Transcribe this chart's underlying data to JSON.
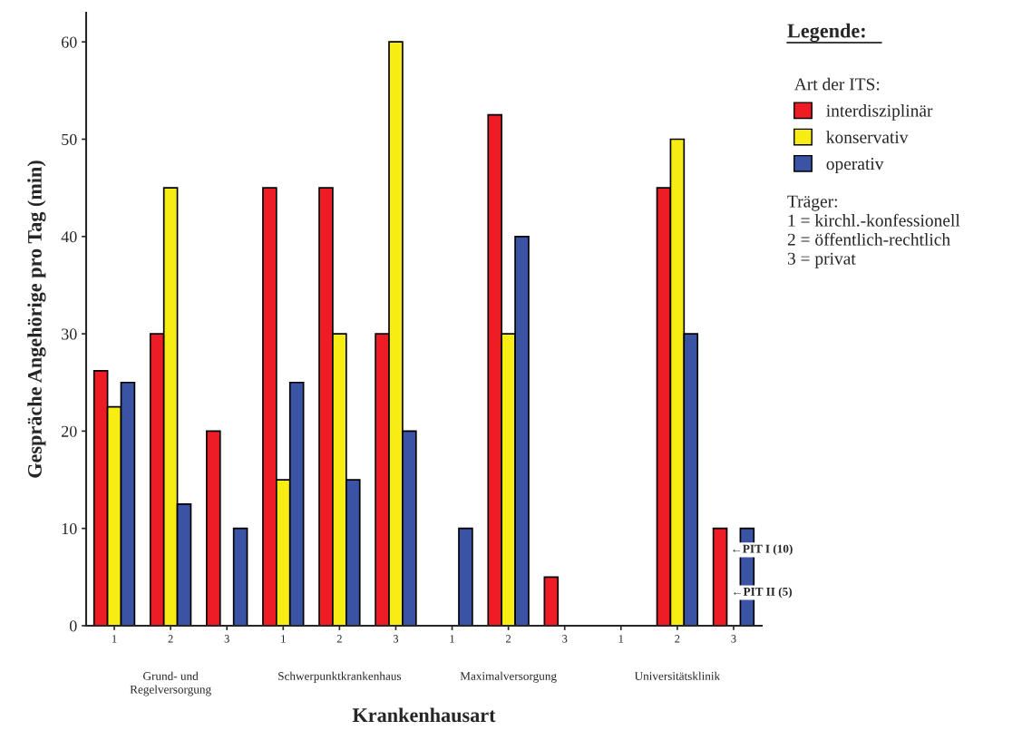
{
  "chart_data": {
    "type": "bar",
    "xlabel": "Krankenhausart",
    "ylabel": "Gespräche Angehörige pro Tag (min)",
    "categories": [
      "1",
      "2",
      "3",
      "1",
      "2",
      "3",
      "1",
      "2",
      "3",
      "1",
      "2",
      "3"
    ],
    "ylim": [
      0,
      63
    ],
    "yticks": [
      0,
      10,
      20,
      30,
      40,
      50,
      60
    ],
    "grid": false,
    "legend": "right",
    "legend_title": "Art der ITS:",
    "series": [
      {
        "name": "interdisziplinär",
        "color": "#ee1c25",
        "values": [
          26.2,
          30,
          20,
          45,
          45,
          30,
          null,
          52.5,
          5,
          null,
          45,
          10
        ]
      },
      {
        "name": "konservativ",
        "color": "#f7ec13",
        "values": [
          22.5,
          45,
          null,
          15,
          30,
          60,
          null,
          30,
          null,
          null,
          50,
          null
        ]
      },
      {
        "name": "operativ",
        "color": "#3a53a4",
        "values": [
          25,
          12.5,
          10,
          25,
          15,
          20,
          10,
          40,
          null,
          null,
          30,
          10
        ]
      }
    ],
    "annotations": [
      "Grund- und\nRegelversorgung",
      "Schwerpunktkrankenhaus",
      "Maximalversorgung",
      "Universitätsklinik",
      "Legende:",
      "Träger:\n1 = kirchl.-konfessionell\n2 = öffentlich-rechtlich\n3 = privat",
      "←PIT I (10)",
      "←PIT II (5)"
    ]
  }
}
